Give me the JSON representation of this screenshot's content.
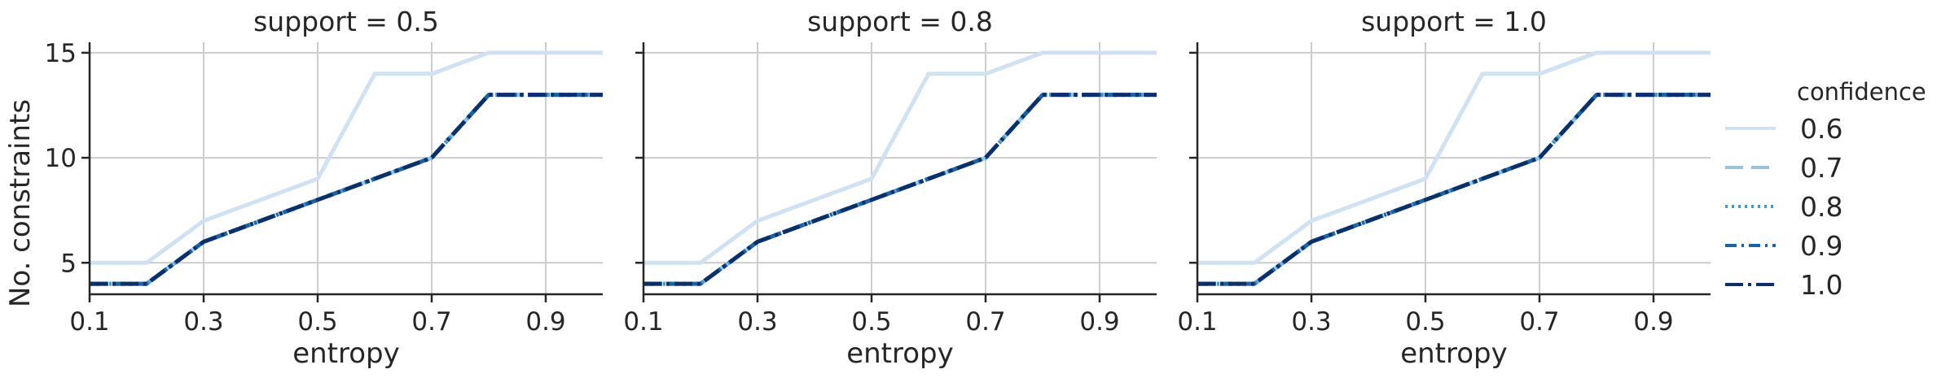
{
  "chart_data": {
    "type": "line",
    "ylabel": "No. constraints",
    "xlabel": "entropy",
    "xlim": [
      0.1,
      1.0
    ],
    "ylim": [
      3.5,
      15.5
    ],
    "xticks": [
      "0.1",
      "0.3",
      "0.5",
      "0.7",
      "0.9"
    ],
    "xtick_values": [
      0.1,
      0.3,
      0.5,
      0.7,
      0.9
    ],
    "yticks": [
      "5",
      "10",
      "15"
    ],
    "ytick_values": [
      5,
      10,
      15
    ],
    "grid": true,
    "legend": {
      "title": "confidence",
      "placement": "right",
      "entries": [
        "0.6",
        "0.7",
        "0.8",
        "0.9",
        "1.0"
      ]
    },
    "x": [
      0.1,
      0.2,
      0.3,
      0.4,
      0.5,
      0.6,
      0.7,
      0.8,
      0.9,
      1.0
    ],
    "panels": [
      {
        "title": "support = 0.5",
        "series": [
          {
            "name": "0.6",
            "color": "#d0e1f2",
            "dash": "",
            "values": [
              5,
              5,
              7,
              8,
              9,
              14,
              14,
              15,
              15,
              15
            ]
          },
          {
            "name": "0.7",
            "color": "#94c4df",
            "dash": "22 10",
            "values": [
              4,
              4,
              6,
              7,
              8,
              9,
              10,
              13,
              13,
              13
            ]
          },
          {
            "name": "0.8",
            "color": "#4a98c9",
            "dash": "3 5",
            "values": [
              4,
              4,
              6,
              7,
              8,
              9,
              10,
              13,
              13,
              13
            ]
          },
          {
            "name": "0.9",
            "color": "#1764ab",
            "dash": "14 6 3 6",
            "values": [
              4,
              4,
              6,
              7,
              8,
              9,
              10,
              13,
              13,
              13
            ]
          },
          {
            "name": "1.0",
            "color": "#08306b",
            "dash": "22 6 4 6",
            "values": [
              4,
              4,
              6,
              7,
              8,
              9,
              10,
              13,
              13,
              13
            ]
          }
        ]
      },
      {
        "title": "support = 0.8",
        "series": [
          {
            "name": "0.6",
            "color": "#d0e1f2",
            "dash": "",
            "values": [
              5,
              5,
              7,
              8,
              9,
              14,
              14,
              15,
              15,
              15
            ]
          },
          {
            "name": "0.7",
            "color": "#94c4df",
            "dash": "22 10",
            "values": [
              4,
              4,
              6,
              7,
              8,
              9,
              10,
              13,
              13,
              13
            ]
          },
          {
            "name": "0.8",
            "color": "#4a98c9",
            "dash": "3 5",
            "values": [
              4,
              4,
              6,
              7,
              8,
              9,
              10,
              13,
              13,
              13
            ]
          },
          {
            "name": "0.9",
            "color": "#1764ab",
            "dash": "14 6 3 6",
            "values": [
              4,
              4,
              6,
              7,
              8,
              9,
              10,
              13,
              13,
              13
            ]
          },
          {
            "name": "1.0",
            "color": "#08306b",
            "dash": "22 6 4 6",
            "values": [
              4,
              4,
              6,
              7,
              8,
              9,
              10,
              13,
              13,
              13
            ]
          }
        ]
      },
      {
        "title": "support = 1.0",
        "series": [
          {
            "name": "0.6",
            "color": "#d0e1f2",
            "dash": "",
            "values": [
              5,
              5,
              7,
              8,
              9,
              14,
              14,
              15,
              15,
              15
            ]
          },
          {
            "name": "0.7",
            "color": "#94c4df",
            "dash": "22 10",
            "values": [
              4,
              4,
              6,
              7,
              8,
              9,
              10,
              13,
              13,
              13
            ]
          },
          {
            "name": "0.8",
            "color": "#4a98c9",
            "dash": "3 5",
            "values": [
              4,
              4,
              6,
              7,
              8,
              9,
              10,
              13,
              13,
              13
            ]
          },
          {
            "name": "0.9",
            "color": "#1764ab",
            "dash": "14 6 3 6",
            "values": [
              4,
              4,
              6,
              7,
              8,
              9,
              10,
              13,
              13,
              13
            ]
          },
          {
            "name": "1.0",
            "color": "#08306b",
            "dash": "22 6 4 6",
            "values": [
              4,
              4,
              6,
              7,
              8,
              9,
              10,
              13,
              13,
              13
            ]
          }
        ]
      }
    ]
  }
}
